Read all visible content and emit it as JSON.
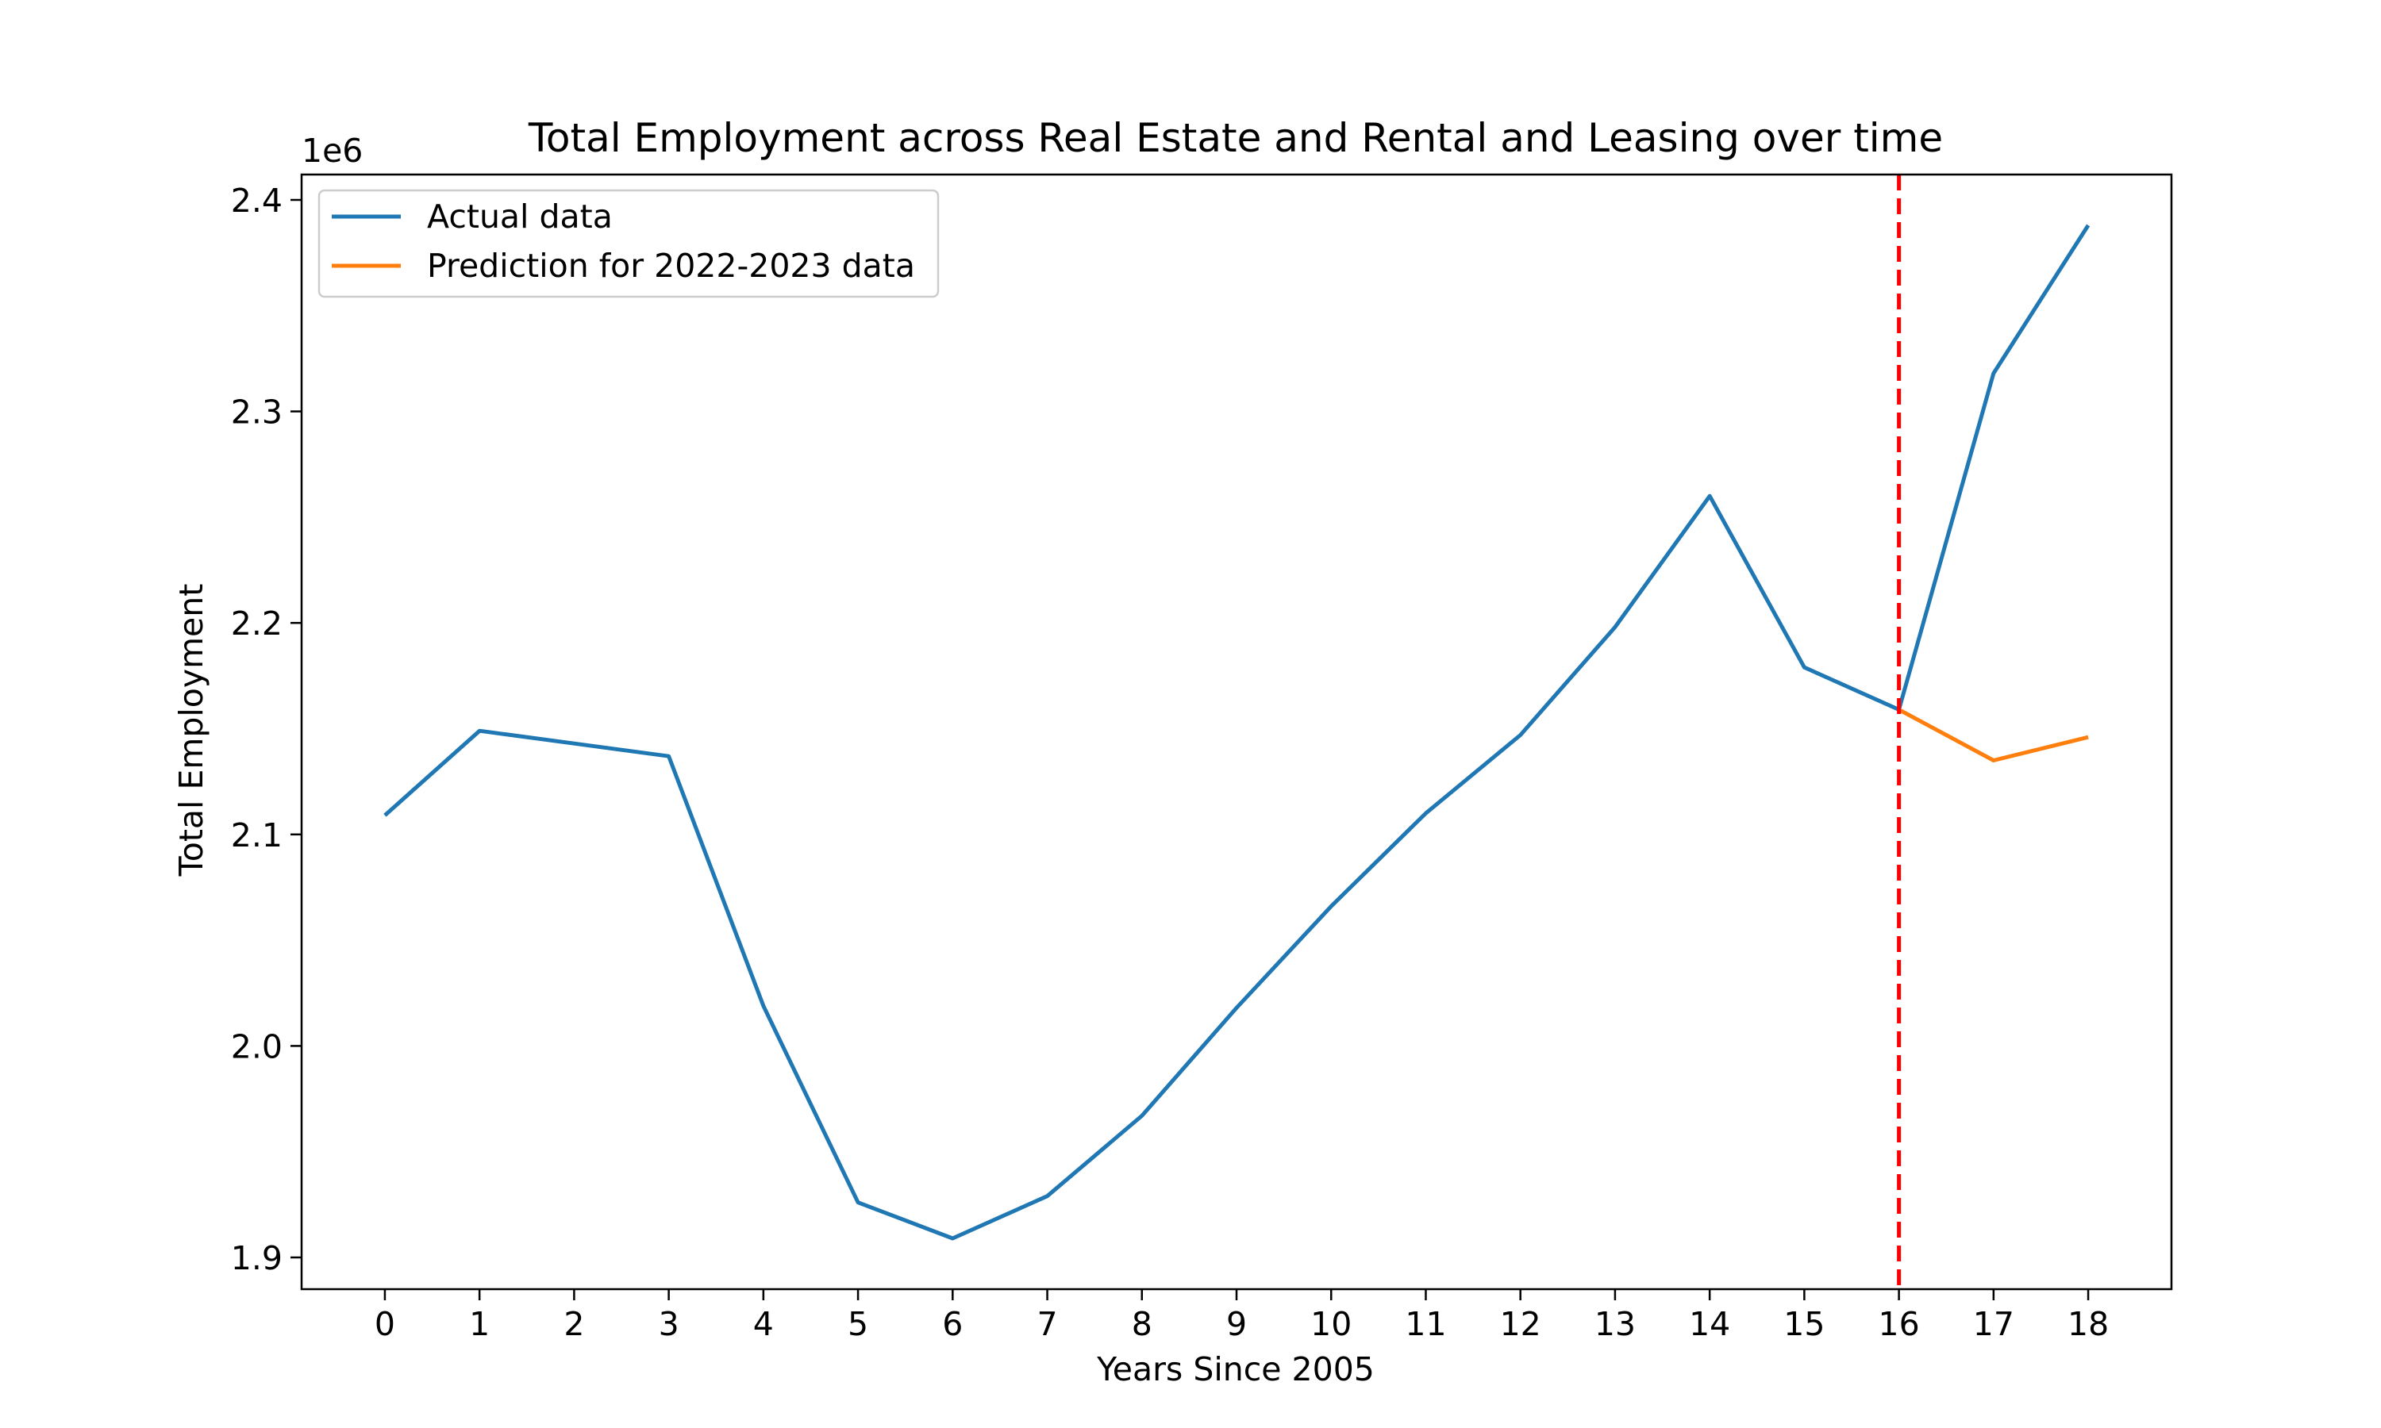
{
  "chart_data": {
    "type": "line",
    "title": "Total Employment across Real Estate and Rental and Leasing over time",
    "xlabel": "Years Since 2005",
    "ylabel": "Total Employment",
    "y_offset_label": "1e6",
    "y_multiplier": 1000000,
    "x": [
      0,
      1,
      2,
      3,
      4,
      5,
      6,
      7,
      8,
      9,
      10,
      11,
      12,
      13,
      14,
      15,
      16,
      17,
      18
    ],
    "x_ticks": [
      "0",
      "1",
      "2",
      "3",
      "4",
      "5",
      "6",
      "7",
      "8",
      "9",
      "10",
      "11",
      "12",
      "13",
      "14",
      "15",
      "16",
      "17",
      "18"
    ],
    "y_ticks": [
      "1.9",
      "2.0",
      "2.1",
      "2.2",
      "2.3",
      "2.4"
    ],
    "xlim": [
      -0.88,
      18.88
    ],
    "ylim": [
      1.885,
      2.412
    ],
    "grid": false,
    "legend_position": "upper left",
    "series": [
      {
        "name": "Actual data",
        "color": "#1f77b4",
        "x": [
          0,
          1,
          2,
          3,
          4,
          5,
          6,
          7,
          8,
          9,
          10,
          11,
          12,
          13,
          14,
          15,
          16,
          17,
          18
        ],
        "values": [
          2.109,
          2.149,
          2.143,
          2.137,
          2.019,
          1.926,
          1.909,
          1.929,
          1.967,
          2.018,
          2.066,
          2.11,
          2.147,
          2.198,
          2.26,
          2.179,
          2.159,
          2.318,
          2.388
        ]
      },
      {
        "name": "Prediction for 2022-2023 data",
        "color": "#ff7f0e",
        "x": [
          16,
          17,
          18
        ],
        "values": [
          2.159,
          2.135,
          2.146
        ]
      }
    ],
    "vertical_line": {
      "x": 16,
      "color": "#ff0000",
      "style": "dashed"
    }
  }
}
